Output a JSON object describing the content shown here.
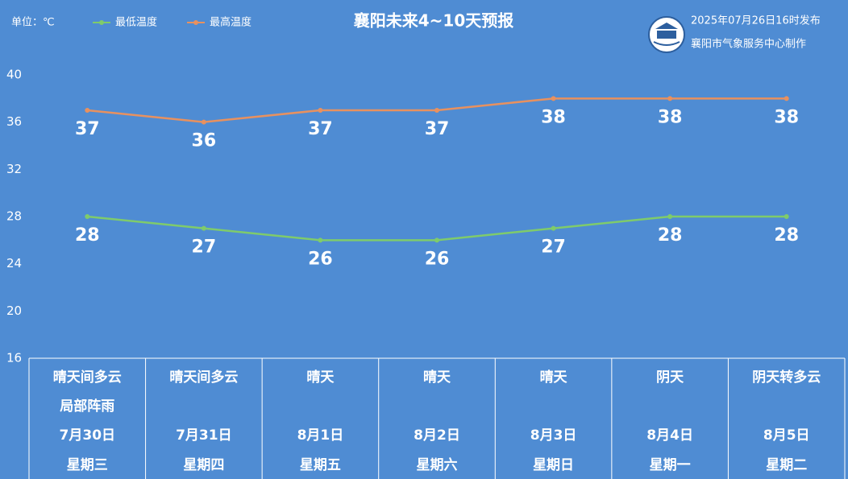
{
  "chart_data": {
    "type": "line",
    "title": "襄阳未来4~10天预报",
    "unit_label": "单位：℃",
    "publish_time": "2025年07月26日16时发布",
    "producer": "襄阳市气象服务中心制作",
    "categories": [
      "7月30日",
      "7月31日",
      "8月1日",
      "8月2日",
      "8月3日",
      "8月4日",
      "8月5日"
    ],
    "weekdays": [
      "星期三",
      "星期四",
      "星期五",
      "星期六",
      "星期日",
      "星期一",
      "星期二"
    ],
    "weather": [
      "晴天间多云",
      "晴天间多云",
      "晴天",
      "晴天",
      "晴天",
      "阴天",
      "阴天转多云"
    ],
    "weather_extra": [
      "局部阵雨",
      null,
      null,
      null,
      null,
      null,
      null
    ],
    "series": [
      {
        "name": "最低温度",
        "color": "#7fcb6b",
        "values": [
          28,
          27,
          26,
          26,
          27,
          28,
          28
        ]
      },
      {
        "name": "最高温度",
        "color": "#e8915f",
        "values": [
          37,
          36,
          37,
          37,
          38,
          38,
          38
        ]
      }
    ],
    "ylim": [
      16,
      40
    ],
    "yticks": [
      16,
      20,
      24,
      28,
      32,
      36,
      40
    ],
    "grid": false
  }
}
